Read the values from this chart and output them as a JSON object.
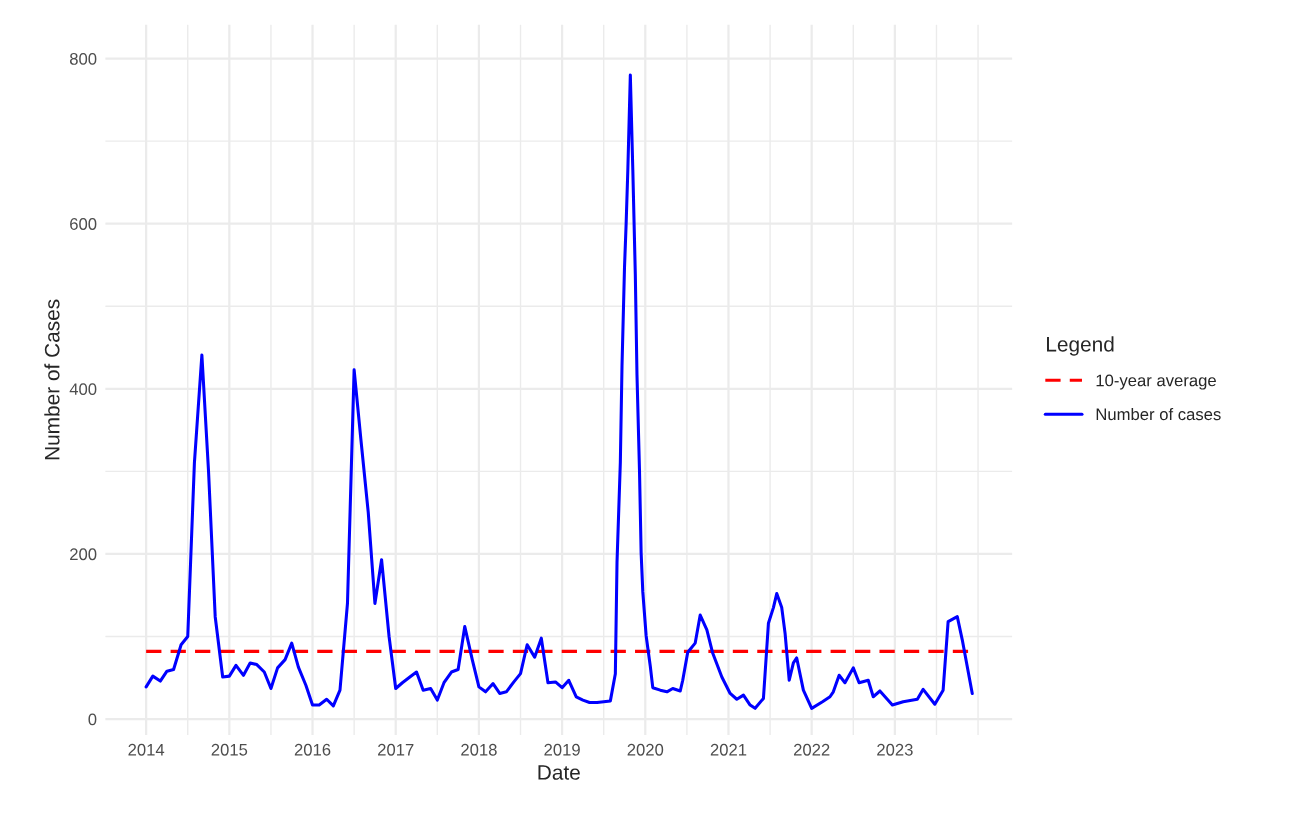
{
  "chart_data": {
    "type": "line",
    "xlabel": "Date",
    "ylabel": "Number of Cases",
    "legend_title": "Legend",
    "legend": "right",
    "grid": true,
    "xlim": [
      2013.51,
      2024.41
    ],
    "ylim": [
      -19.4,
      841
    ],
    "xticks": [
      2014,
      2015,
      2016,
      2017,
      2018,
      2019,
      2020,
      2021,
      2022,
      2023
    ],
    "yticks": [
      0,
      200,
      400,
      600,
      800
    ],
    "series": [
      {
        "name": "10-year average",
        "color": "#ff0000",
        "line_style": "dashed",
        "x": [
          2014.0,
          2023.93
        ],
        "values": [
          82,
          82
        ]
      },
      {
        "name": "Number of cases",
        "color": "#0000ff",
        "line_style": "solid",
        "x": [
          2014.0,
          2014.08,
          2014.17,
          2014.25,
          2014.33,
          2014.42,
          2014.5,
          2014.58,
          2014.67,
          2014.75,
          2014.83,
          2014.92,
          2015.0,
          2015.08,
          2015.17,
          2015.25,
          2015.33,
          2015.42,
          2015.5,
          2015.58,
          2015.67,
          2015.75,
          2015.83,
          2015.92,
          2016.0,
          2016.08,
          2016.17,
          2016.25,
          2016.33,
          2016.42,
          2016.5,
          2016.58,
          2016.67,
          2016.75,
          2016.83,
          2016.92,
          2017.0,
          2017.08,
          2017.17,
          2017.25,
          2017.33,
          2017.42,
          2017.5,
          2017.58,
          2017.67,
          2017.75,
          2017.83,
          2017.92,
          2018.0,
          2018.08,
          2018.17,
          2018.25,
          2018.33,
          2018.42,
          2018.5,
          2018.58,
          2018.67,
          2018.75,
          2018.83,
          2018.92,
          2019.0,
          2019.08,
          2019.17,
          2019.25,
          2019.33,
          2019.42,
          2019.5,
          2019.58,
          2019.64,
          2019.66,
          2019.7,
          2019.72,
          2019.75,
          2019.77,
          2019.79,
          2019.82,
          2019.85,
          2019.88,
          2019.9,
          2019.93,
          2019.95,
          2019.97,
          2020.01,
          2020.06,
          2020.09,
          2020.18,
          2020.26,
          2020.33,
          2020.42,
          2020.45,
          2020.51,
          2020.6,
          2020.66,
          2020.74,
          2020.81,
          2020.92,
          2021.02,
          2021.1,
          2021.18,
          2021.26,
          2021.32,
          2021.42,
          2021.48,
          2021.54,
          2021.58,
          2021.64,
          2021.68,
          2021.73,
          2021.78,
          2021.82,
          2021.9,
          2022.0,
          2022.13,
          2022.22,
          2022.26,
          2022.33,
          2022.4,
          2022.5,
          2022.57,
          2022.68,
          2022.74,
          2022.82,
          2022.97,
          2023.1,
          2023.27,
          2023.34,
          2023.48,
          2023.58,
          2023.64,
          2023.75,
          2023.81,
          2023.93
        ],
        "values": [
          39,
          52,
          46,
          58,
          60,
          90,
          100,
          310,
          441,
          300,
          124,
          51,
          52,
          65,
          53,
          68,
          66,
          57,
          37,
          62,
          72,
          92,
          63,
          41,
          17,
          17,
          24,
          16,
          35,
          140,
          423,
          340,
          250,
          140,
          193,
          100,
          37,
          44,
          51,
          57,
          35,
          37,
          23,
          44,
          57,
          60,
          112,
          72,
          39,
          33,
          43,
          31,
          33,
          45,
          55,
          90,
          75,
          98,
          44,
          45,
          38,
          47,
          27,
          23,
          20,
          20,
          21,
          22,
          55,
          190,
          311,
          428,
          547,
          601,
          665,
          780,
          665,
          538,
          417,
          302,
          201,
          154,
          101,
          64,
          38,
          35,
          33,
          37,
          34,
          47,
          81,
          92,
          126,
          108,
          80,
          51,
          31,
          24,
          29,
          17,
          13,
          25,
          116,
          135,
          152,
          135,
          104,
          47,
          68,
          74,
          35,
          13,
          21,
          27,
          33,
          53,
          44,
          62,
          44,
          47,
          27,
          34,
          17,
          21,
          24,
          36,
          18,
          35,
          118,
          124,
          96,
          31
        ]
      }
    ]
  }
}
